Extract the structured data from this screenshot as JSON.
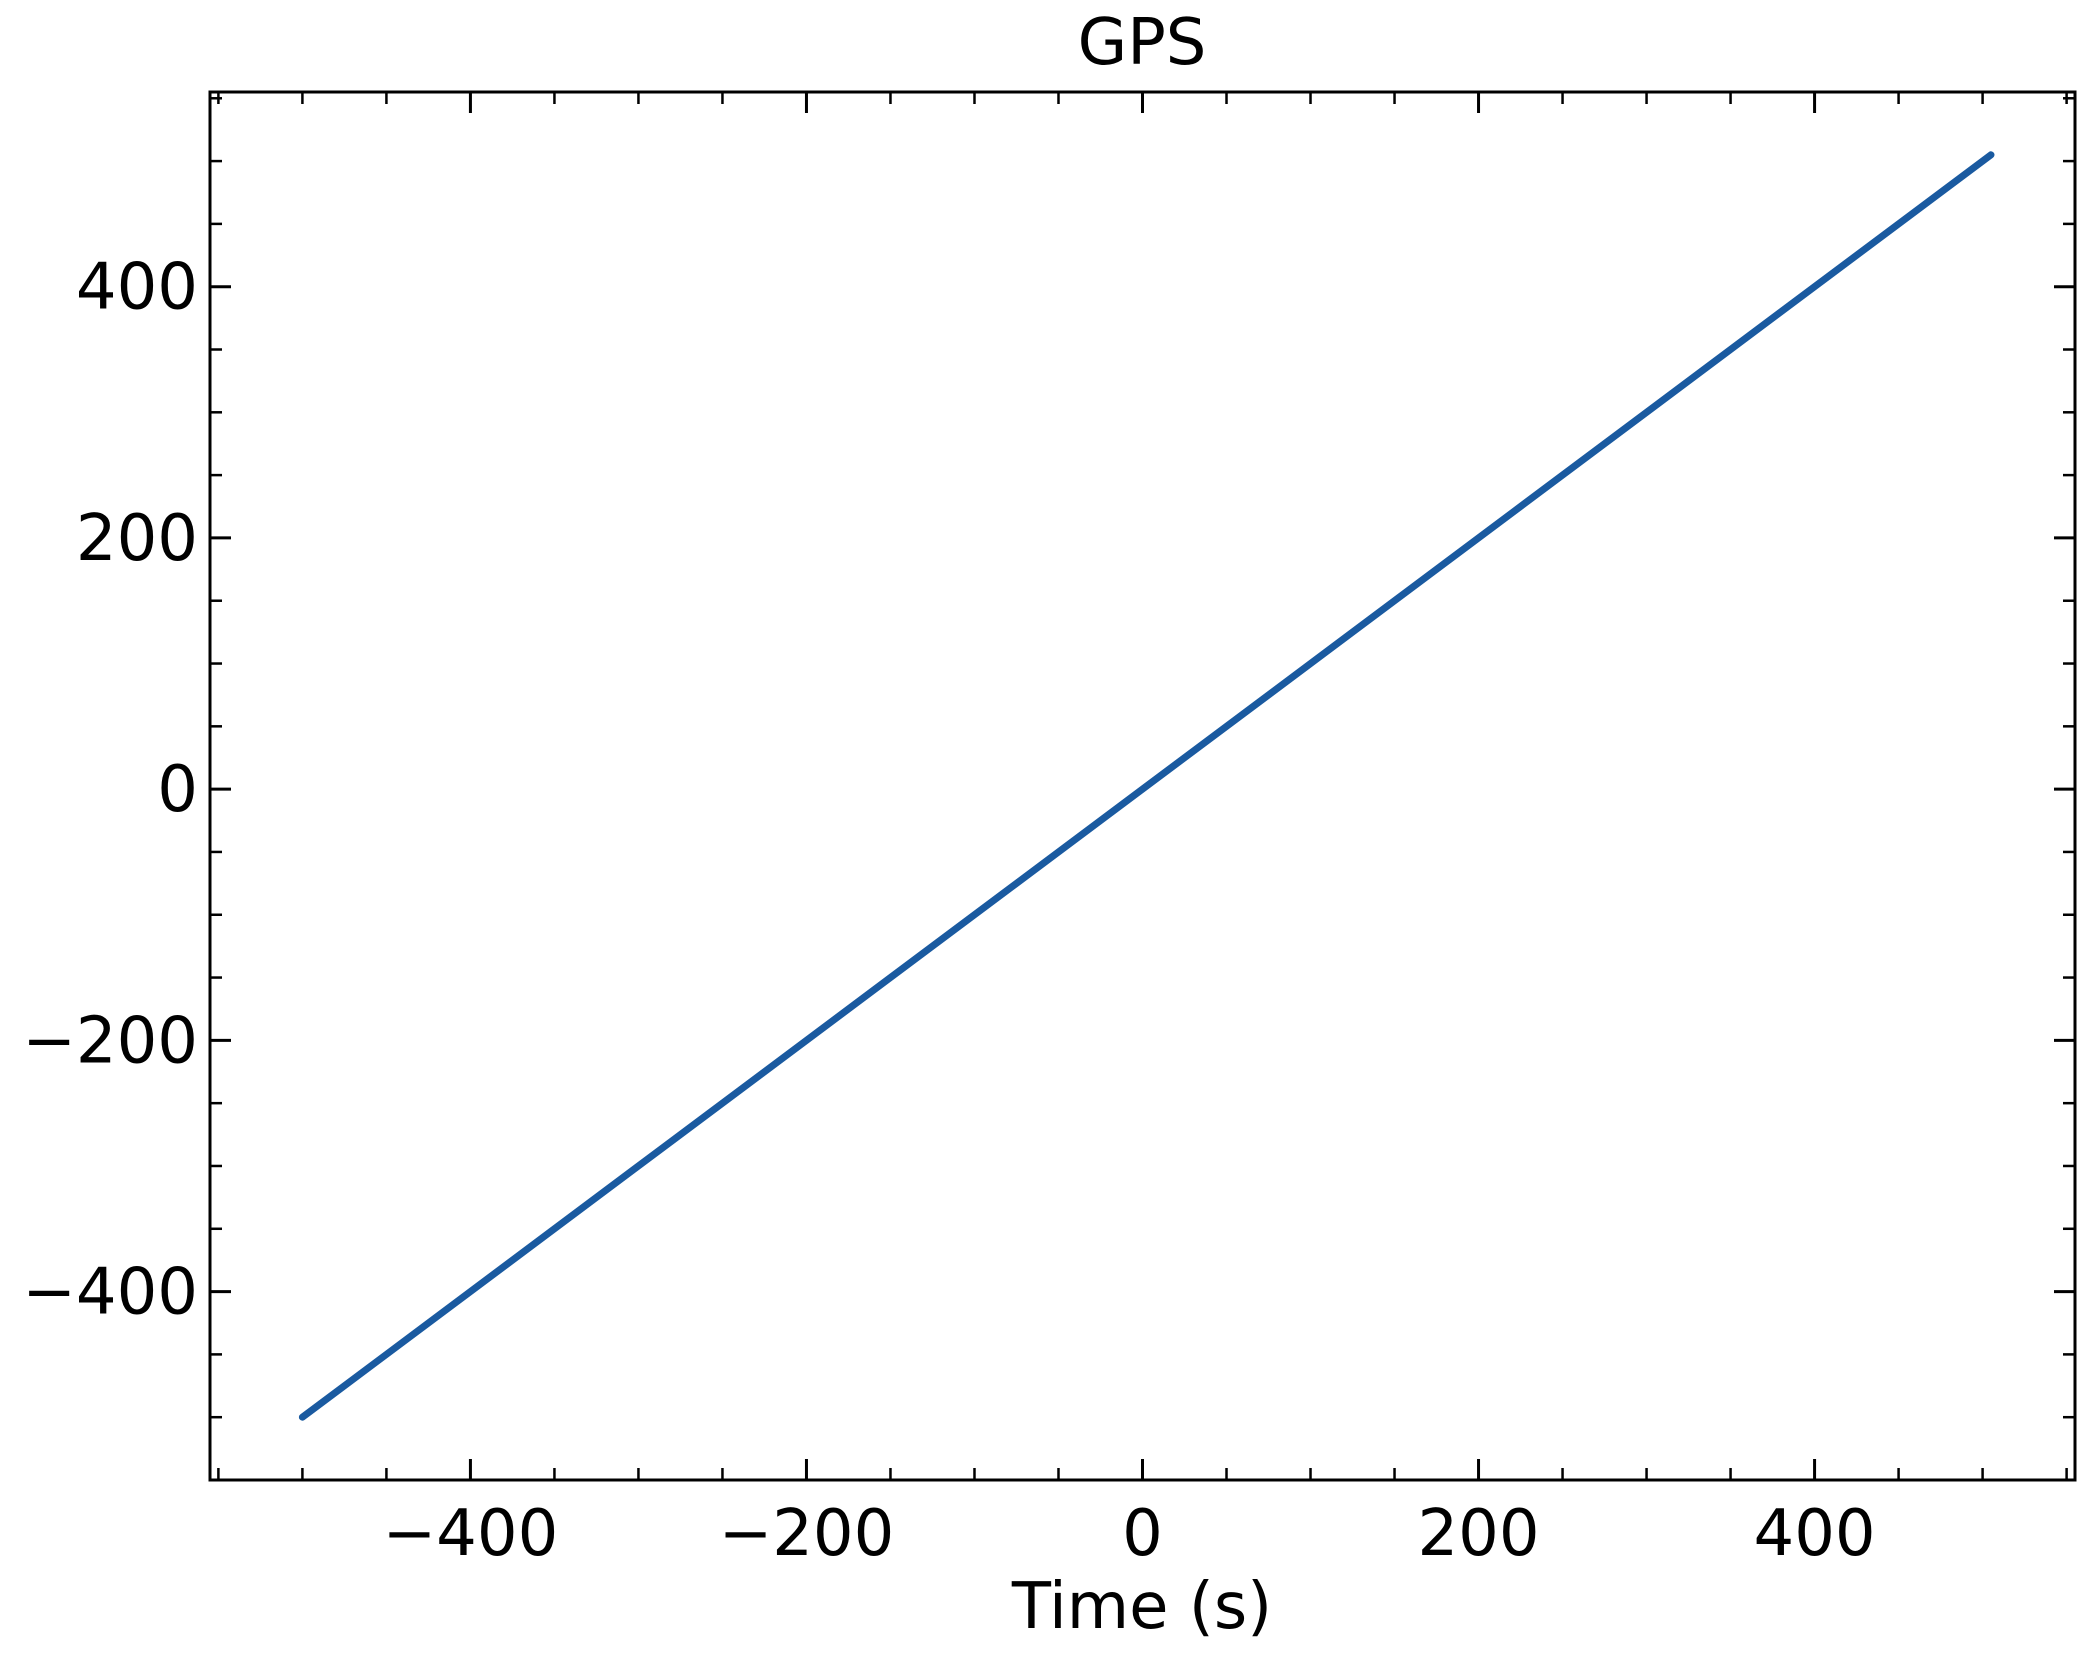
{
  "colors": {
    "line": "#1a5aa0",
    "axis": "#000000",
    "background": "#ffffff"
  },
  "chart_data": {
    "type": "line",
    "title": "GPS",
    "xlabel": "Time (s)",
    "ylabel": "",
    "xlim": [
      -555,
      555
    ],
    "ylim": [
      -550,
      555
    ],
    "x_ticks": [
      -400,
      -200,
      0,
      200,
      400
    ],
    "x_tick_labels": [
      "−400",
      "−200",
      "0",
      "200",
      "400"
    ],
    "y_ticks": [
      -400,
      -200,
      0,
      200,
      400
    ],
    "y_tick_labels": [
      "−400",
      "−200",
      "0",
      "200",
      "400"
    ],
    "x_minor_step": 50,
    "y_minor_step": 50,
    "grid": false,
    "series": [
      {
        "x": [
          -500,
          505
        ],
        "y": [
          -500,
          505
        ]
      }
    ]
  }
}
